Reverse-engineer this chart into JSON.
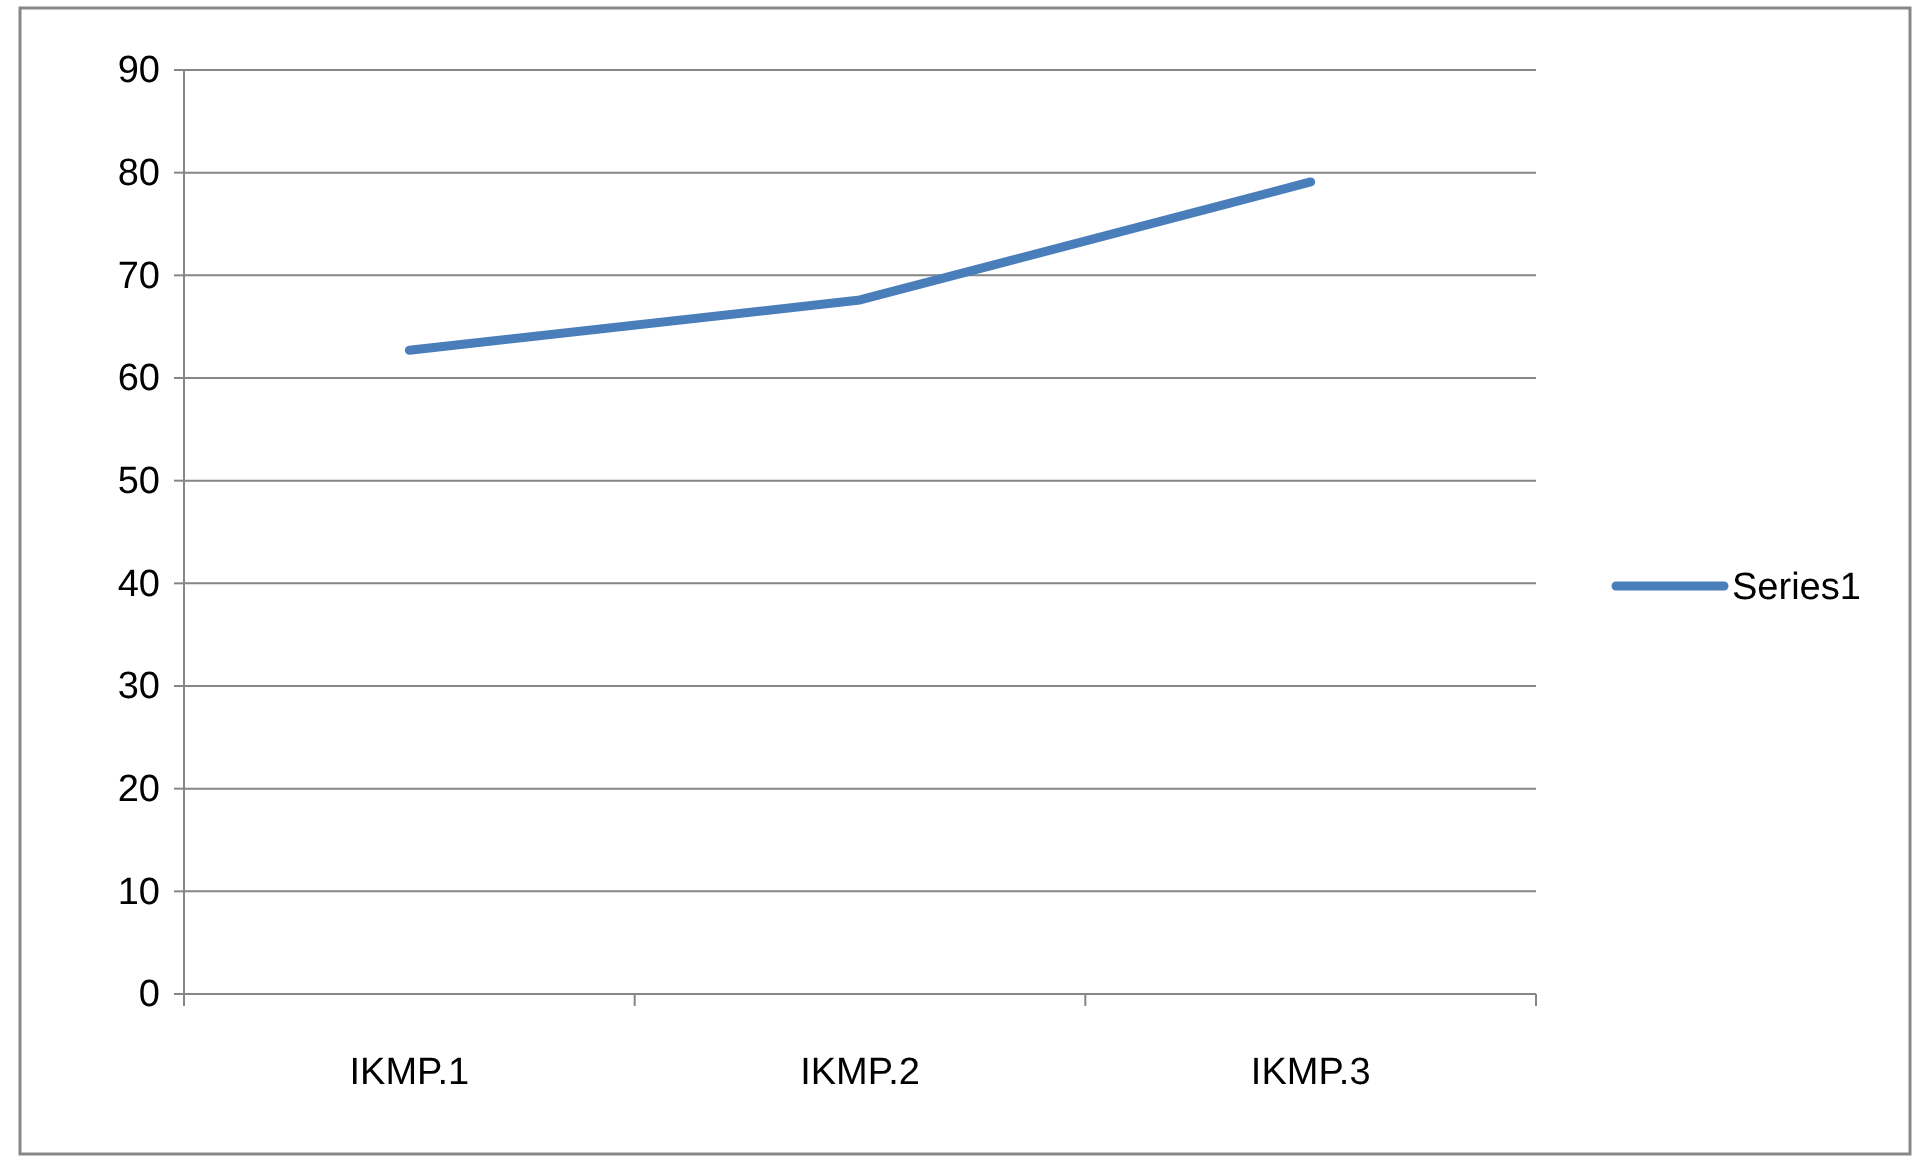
{
  "chart_data": {
    "type": "line",
    "categories": [
      "IKMP.1",
      "IKMP.2",
      "IKMP.3"
    ],
    "series": [
      {
        "name": "Series1",
        "color": "#4a7ebb",
        "values": [
          62.7,
          67.6,
          79.1
        ]
      }
    ],
    "ylim": [
      0,
      90
    ],
    "yticks": [
      0,
      10,
      20,
      30,
      40,
      50,
      60,
      70,
      80,
      90
    ],
    "grid": "y",
    "legend": "right",
    "marker": "none",
    "line_style": "solid"
  }
}
